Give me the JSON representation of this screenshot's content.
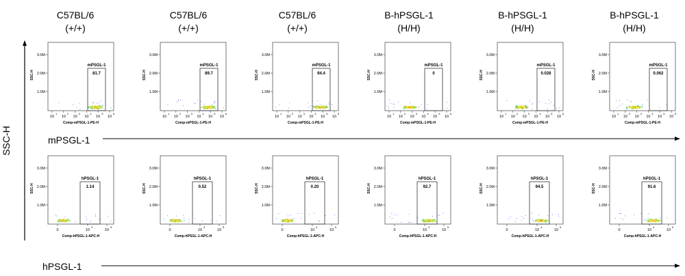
{
  "y_axis_label": "SSC-H",
  "rows": [
    {
      "arrow_label": "mPSGL-1"
    },
    {
      "arrow_label": "hPSGL-1"
    }
  ],
  "columns": [
    {
      "line1": "C57BL/6",
      "line2": "(+/+)"
    },
    {
      "line1": "C57BL/6",
      "line2": "(+/+)"
    },
    {
      "line1": "C57BL/6",
      "line2": "(+/+)"
    },
    {
      "line1": "B-hPSGL-1",
      "line2": "(H/H)"
    },
    {
      "line1": "B-hPSGL-1",
      "line2": "(H/H)"
    },
    {
      "line1": "B-hPSGL-1",
      "line2": "(H/H)"
    }
  ],
  "chart_data": [
    {
      "type": "scatter",
      "row": "mPSGL-1",
      "ylabel": "SSC-H",
      "xlabel": "Comp-mPSGL-1-PE-H",
      "y_ticks": [
        "3.0M",
        "2.0M",
        "1.0M"
      ],
      "x_ticks": [
        "10",
        "10",
        "10",
        "10",
        "10",
        "10"
      ],
      "x_tick_exponents": [
        "1",
        "2",
        "3",
        "4",
        "5",
        "6"
      ],
      "gate_label": "mPSGL-1",
      "gates": [
        "81.7",
        "89.7",
        "94.4",
        "0",
        "0.028",
        "0.062"
      ],
      "population_x_position": [
        "high",
        "high",
        "high",
        "low",
        "low",
        "low"
      ]
    },
    {
      "type": "scatter",
      "row": "hPSGL-1",
      "ylabel": "SSC-H",
      "xlabel": "Comp-hPSGL-1-APC-H",
      "y_ticks": [
        "3.0M",
        "2.0M",
        "1.0M"
      ],
      "x_ticks": [
        "0",
        "10",
        "10"
      ],
      "x_tick_exponents": [
        "",
        "4",
        "5"
      ],
      "gate_label": "hPSGL-1",
      "gates": [
        "1.14",
        "0.52",
        "0.20",
        "92.7",
        "94.5",
        "91.6"
      ],
      "population_x_position": [
        "low",
        "low",
        "low",
        "high",
        "high",
        "high"
      ]
    }
  ]
}
